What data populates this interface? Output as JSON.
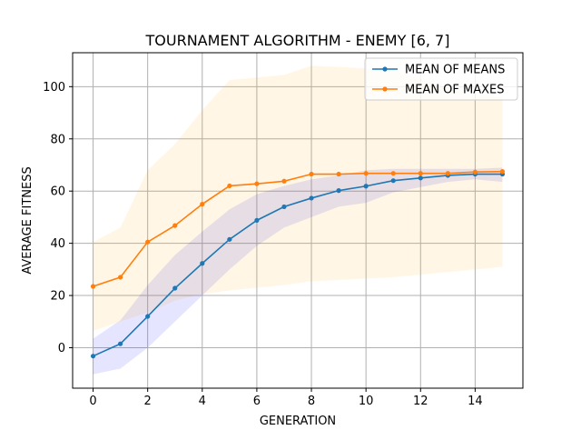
{
  "chart_data": {
    "type": "line",
    "title": "TOURNAMENT ALGORITHM - ENEMY [6, 7]",
    "xlabel": "GENERATION",
    "ylabel": "AVERAGE FITNESS",
    "xlim": [
      -0.75,
      15.75
    ],
    "ylim": [
      -15.5,
      113
    ],
    "xticks": [
      0,
      2,
      4,
      6,
      8,
      10,
      12,
      14
    ],
    "yticks": [
      0,
      20,
      40,
      60,
      80,
      100
    ],
    "grid": true,
    "legend_position": "top-right",
    "x": [
      0,
      1,
      2,
      3,
      4,
      5,
      6,
      7,
      8,
      9,
      10,
      11,
      12,
      13,
      14,
      15
    ],
    "series": [
      {
        "name": "MEAN OF MEANS",
        "color": "#1f77b4",
        "band_color": "#0000ff",
        "values": [
          -3.2,
          1.5,
          12.0,
          22.8,
          32.3,
          41.5,
          48.8,
          54.0,
          57.3,
          60.2,
          61.9,
          64.0,
          65.0,
          66.0,
          66.5,
          66.5
        ],
        "lower": [
          -10.2,
          -8.0,
          0.0,
          10.0,
          20.0,
          30.0,
          39.0,
          46.0,
          50.0,
          54.0,
          55.5,
          59.5,
          61.5,
          63.5,
          64.5,
          63.5
        ],
        "upper": [
          3.5,
          10.5,
          24.0,
          35.5,
          44.5,
          53.0,
          58.8,
          62.0,
          64.5,
          66.0,
          68.0,
          68.5,
          68.5,
          68.5,
          68.5,
          69.0
        ]
      },
      {
        "name": "MEAN OF MAXES",
        "color": "#ff7f0e",
        "band_color": "#ffa500",
        "values": [
          23.5,
          27.0,
          40.5,
          46.8,
          55.0,
          62.0,
          62.8,
          63.8,
          66.5,
          66.5,
          66.8,
          66.8,
          66.8,
          66.8,
          67.3,
          67.5
        ],
        "lower": [
          6.5,
          10.0,
          13.5,
          18.0,
          20.5,
          22.0,
          23.0,
          24.0,
          25.5,
          26.0,
          26.5,
          27.0,
          28.0,
          29.0,
          30.0,
          31.0
        ],
        "upper": [
          40.5,
          46.0,
          68.0,
          78.0,
          91.0,
          102.5,
          103.5,
          104.5,
          108.0,
          107.5,
          107.0,
          106.0,
          103.0,
          99.5,
          97.0,
          96.5
        ]
      }
    ]
  }
}
